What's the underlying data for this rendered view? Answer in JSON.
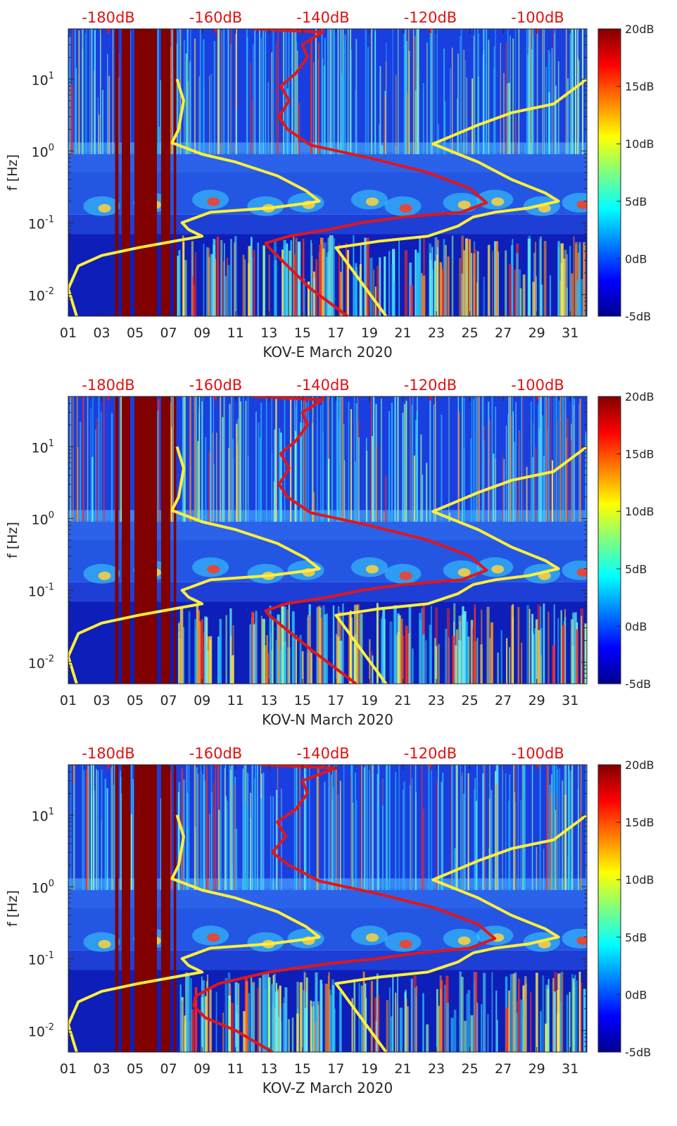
{
  "chart_data": [
    {
      "type": "heatmap",
      "component": "KOV-E",
      "xlabel": "KOV-E March 2020",
      "ylabel": "f [Hz]",
      "x_ticks": [
        "01",
        "03",
        "05",
        "07",
        "09",
        "11",
        "13",
        "15",
        "17",
        "19",
        "21",
        "23",
        "25",
        "27",
        "29",
        "31"
      ],
      "x_range_days": [
        1,
        32
      ],
      "y_scale": "log",
      "y_range_hz": [
        0.005,
        50
      ],
      "y_ticks": [
        {
          "base": "10",
          "exp": "-2"
        },
        {
          "base": "10",
          "exp": "-1"
        },
        {
          "base": "10",
          "exp": "0"
        },
        {
          "base": "10",
          "exp": "1"
        }
      ],
      "top_axis_labels": [
        "-180dB",
        "-160dB",
        "-140dB",
        "-120dB",
        "-100dB"
      ],
      "colorbar_labels": [
        "20dB",
        "15dB",
        "10dB",
        "5dB",
        "0dB",
        "-5dB"
      ],
      "color_range_db": [
        -5,
        20
      ],
      "saturated_columns_days": [
        [
          3.8,
          4.0
        ],
        [
          4.2,
          4.7
        ],
        [
          4.95,
          6.3
        ],
        [
          6.55,
          7.1
        ],
        [
          7.3,
          7.45
        ]
      ],
      "yellow_curves": [
        {
          "name": "left",
          "points": [
            [
              1.5,
              0.005
            ],
            [
              1.0,
              0.012
            ],
            [
              1.6,
              0.025
            ],
            [
              3.0,
              0.035
            ],
            [
              5.2,
              0.045
            ],
            [
              9.0,
              0.065
            ],
            [
              8.2,
              0.08
            ],
            [
              7.8,
              0.1
            ],
            [
              9.5,
              0.14
            ],
            [
              13.0,
              0.16
            ],
            [
              15.5,
              0.19
            ],
            [
              16.0,
              0.2
            ],
            [
              15.2,
              0.28
            ],
            [
              13.5,
              0.45
            ],
            [
              11.0,
              0.7
            ],
            [
              9.0,
              0.9
            ],
            [
              7.2,
              1.3
            ],
            [
              7.6,
              2.0
            ],
            [
              7.9,
              5.0
            ],
            [
              7.5,
              10.0
            ]
          ]
        },
        {
          "name": "right",
          "points": [
            [
              20.0,
              0.005
            ],
            [
              17.0,
              0.045
            ],
            [
              19.5,
              0.055
            ],
            [
              22.5,
              0.065
            ],
            [
              24.3,
              0.09
            ],
            [
              25.2,
              0.12
            ],
            [
              26.5,
              0.14
            ],
            [
              28.5,
              0.16
            ],
            [
              30.3,
              0.2
            ],
            [
              29.5,
              0.26
            ],
            [
              27.5,
              0.4
            ],
            [
              25.5,
              0.7
            ],
            [
              22.8,
              1.25
            ],
            [
              25.5,
              2.3
            ],
            [
              27.5,
              3.4
            ],
            [
              30.0,
              4.5
            ],
            [
              32.0,
              10.0
            ]
          ]
        }
      ],
      "red_curve": {
        "name": "noise-level",
        "points": [
          [
            17.7,
            0.005
          ],
          [
            15.5,
            0.012
          ],
          [
            13.0,
            0.045
          ],
          [
            12.8,
            0.052
          ],
          [
            14.2,
            0.065
          ],
          [
            16.5,
            0.08
          ],
          [
            18.5,
            0.1
          ],
          [
            21.0,
            0.12
          ],
          [
            24.5,
            0.14
          ],
          [
            26.0,
            0.19
          ],
          [
            25.0,
            0.3
          ],
          [
            22.5,
            0.5
          ],
          [
            19.0,
            0.8
          ],
          [
            15.5,
            1.2
          ],
          [
            14.1,
            2.0
          ],
          [
            13.6,
            3.0
          ],
          [
            14.2,
            5.0
          ],
          [
            13.7,
            8.0
          ],
          [
            14.6,
            12.0
          ],
          [
            15.3,
            20.0
          ],
          [
            15.0,
            30.0
          ],
          [
            16.2,
            45.0
          ],
          [
            12.0,
            50.0
          ]
        ]
      }
    },
    {
      "type": "heatmap",
      "component": "KOV-N",
      "xlabel": "KOV-N March 2020",
      "ylabel": "f [Hz]",
      "x_ticks": [
        "01",
        "03",
        "05",
        "07",
        "09",
        "11",
        "13",
        "15",
        "17",
        "19",
        "21",
        "23",
        "25",
        "27",
        "29",
        "31"
      ],
      "x_range_days": [
        1,
        32
      ],
      "y_scale": "log",
      "y_range_hz": [
        0.005,
        50
      ],
      "y_ticks": [
        {
          "base": "10",
          "exp": "-2"
        },
        {
          "base": "10",
          "exp": "-1"
        },
        {
          "base": "10",
          "exp": "0"
        },
        {
          "base": "10",
          "exp": "1"
        }
      ],
      "top_axis_labels": [
        "-180dB",
        "-160dB",
        "-140dB",
        "-120dB",
        "-100dB"
      ],
      "colorbar_labels": [
        "20dB",
        "15dB",
        "10dB",
        "5dB",
        "0dB",
        "-5dB"
      ],
      "color_range_db": [
        -5,
        20
      ],
      "saturated_columns_days": [
        [
          3.8,
          4.0
        ],
        [
          4.2,
          4.7
        ],
        [
          4.95,
          6.3
        ],
        [
          6.55,
          7.1
        ],
        [
          7.3,
          7.45
        ]
      ],
      "yellow_curves": [
        {
          "name": "left",
          "points": [
            [
              1.5,
              0.005
            ],
            [
              1.0,
              0.012
            ],
            [
              1.6,
              0.025
            ],
            [
              3.0,
              0.035
            ],
            [
              5.2,
              0.045
            ],
            [
              9.0,
              0.065
            ],
            [
              8.2,
              0.08
            ],
            [
              7.8,
              0.1
            ],
            [
              9.5,
              0.14
            ],
            [
              13.0,
              0.16
            ],
            [
              15.5,
              0.19
            ],
            [
              16.0,
              0.2
            ],
            [
              15.2,
              0.28
            ],
            [
              13.5,
              0.45
            ],
            [
              11.0,
              0.7
            ],
            [
              9.0,
              0.9
            ],
            [
              7.2,
              1.3
            ],
            [
              7.6,
              2.0
            ],
            [
              7.9,
              5.0
            ],
            [
              7.5,
              10.0
            ]
          ]
        },
        {
          "name": "right",
          "points": [
            [
              20.0,
              0.005
            ],
            [
              17.0,
              0.045
            ],
            [
              19.5,
              0.055
            ],
            [
              22.5,
              0.065
            ],
            [
              24.3,
              0.09
            ],
            [
              25.2,
              0.12
            ],
            [
              26.5,
              0.14
            ],
            [
              28.5,
              0.16
            ],
            [
              30.3,
              0.2
            ],
            [
              29.5,
              0.26
            ],
            [
              27.5,
              0.4
            ],
            [
              25.5,
              0.7
            ],
            [
              22.8,
              1.25
            ],
            [
              25.5,
              2.3
            ],
            [
              27.5,
              3.4
            ],
            [
              30.0,
              4.5
            ],
            [
              32.0,
              10.0
            ]
          ]
        }
      ],
      "red_curve": {
        "name": "noise-level",
        "points": [
          [
            18.2,
            0.005
          ],
          [
            15.5,
            0.015
          ],
          [
            13.0,
            0.045
          ],
          [
            12.8,
            0.052
          ],
          [
            14.0,
            0.065
          ],
          [
            16.5,
            0.08
          ],
          [
            18.5,
            0.1
          ],
          [
            21.0,
            0.12
          ],
          [
            24.5,
            0.14
          ],
          [
            26.0,
            0.19
          ],
          [
            25.0,
            0.3
          ],
          [
            22.5,
            0.5
          ],
          [
            19.0,
            0.8
          ],
          [
            15.5,
            1.2
          ],
          [
            14.1,
            2.0
          ],
          [
            13.6,
            3.0
          ],
          [
            14.2,
            5.0
          ],
          [
            13.7,
            8.0
          ],
          [
            14.6,
            12.0
          ],
          [
            15.3,
            20.0
          ],
          [
            15.0,
            30.0
          ],
          [
            16.2,
            45.0
          ],
          [
            12.0,
            50.0
          ]
        ]
      }
    },
    {
      "type": "heatmap",
      "component": "KOV-Z",
      "xlabel": "KOV-Z March 2020",
      "ylabel": "f [Hz]",
      "x_ticks": [
        "01",
        "03",
        "05",
        "07",
        "09",
        "11",
        "13",
        "15",
        "17",
        "19",
        "21",
        "23",
        "25",
        "27",
        "29",
        "31"
      ],
      "x_range_days": [
        1,
        32
      ],
      "y_scale": "log",
      "y_range_hz": [
        0.005,
        50
      ],
      "y_ticks": [
        {
          "base": "10",
          "exp": "-2"
        },
        {
          "base": "10",
          "exp": "-1"
        },
        {
          "base": "10",
          "exp": "0"
        },
        {
          "base": "10",
          "exp": "1"
        }
      ],
      "top_axis_labels": [
        "-180dB",
        "-160dB",
        "-140dB",
        "-120dB",
        "-100dB"
      ],
      "colorbar_labels": [
        "20dB",
        "15dB",
        "10dB",
        "5dB",
        "0dB",
        "-5dB"
      ],
      "color_range_db": [
        -5,
        20
      ],
      "saturated_columns_days": [
        [
          3.8,
          4.0
        ],
        [
          4.2,
          4.7
        ],
        [
          4.95,
          6.3
        ],
        [
          6.55,
          7.1
        ],
        [
          7.3,
          7.45
        ]
      ],
      "yellow_curves": [
        {
          "name": "left",
          "points": [
            [
              1.5,
              0.005
            ],
            [
              1.0,
              0.012
            ],
            [
              1.6,
              0.025
            ],
            [
              3.0,
              0.035
            ],
            [
              5.2,
              0.045
            ],
            [
              9.0,
              0.065
            ],
            [
              8.2,
              0.08
            ],
            [
              7.8,
              0.1
            ],
            [
              9.5,
              0.14
            ],
            [
              13.0,
              0.16
            ],
            [
              15.5,
              0.19
            ],
            [
              16.0,
              0.2
            ],
            [
              15.2,
              0.28
            ],
            [
              13.5,
              0.45
            ],
            [
              11.0,
              0.7
            ],
            [
              9.0,
              0.9
            ],
            [
              7.2,
              1.3
            ],
            [
              7.6,
              2.0
            ],
            [
              7.9,
              5.0
            ],
            [
              7.5,
              10.0
            ]
          ]
        },
        {
          "name": "right",
          "points": [
            [
              20.0,
              0.005
            ],
            [
              17.0,
              0.045
            ],
            [
              19.5,
              0.055
            ],
            [
              22.5,
              0.065
            ],
            [
              24.3,
              0.09
            ],
            [
              25.2,
              0.12
            ],
            [
              26.5,
              0.14
            ],
            [
              28.5,
              0.16
            ],
            [
              30.3,
              0.2
            ],
            [
              29.5,
              0.26
            ],
            [
              27.5,
              0.4
            ],
            [
              25.5,
              0.7
            ],
            [
              22.8,
              1.25
            ],
            [
              25.5,
              2.3
            ],
            [
              27.5,
              3.4
            ],
            [
              30.0,
              4.5
            ],
            [
              32.0,
              10.0
            ]
          ]
        }
      ],
      "red_curve": {
        "name": "noise-level",
        "points": [
          [
            13.2,
            0.005
          ],
          [
            11.0,
            0.01
          ],
          [
            9.2,
            0.015
          ],
          [
            8.5,
            0.022
          ],
          [
            8.6,
            0.03
          ],
          [
            10.0,
            0.045
          ],
          [
            13.0,
            0.065
          ],
          [
            16.5,
            0.085
          ],
          [
            19.5,
            0.1
          ],
          [
            22.0,
            0.12
          ],
          [
            25.0,
            0.14
          ],
          [
            26.5,
            0.19
          ],
          [
            25.5,
            0.3
          ],
          [
            23.0,
            0.5
          ],
          [
            19.5,
            0.8
          ],
          [
            16.0,
            1.2
          ],
          [
            14.2,
            2.0
          ],
          [
            13.2,
            3.0
          ],
          [
            14.0,
            5.0
          ],
          [
            13.5,
            8.0
          ],
          [
            14.6,
            12.0
          ],
          [
            15.3,
            20.0
          ],
          [
            15.0,
            30.0
          ],
          [
            17.0,
            45.0
          ],
          [
            12.5,
            50.0
          ]
        ]
      }
    }
  ]
}
